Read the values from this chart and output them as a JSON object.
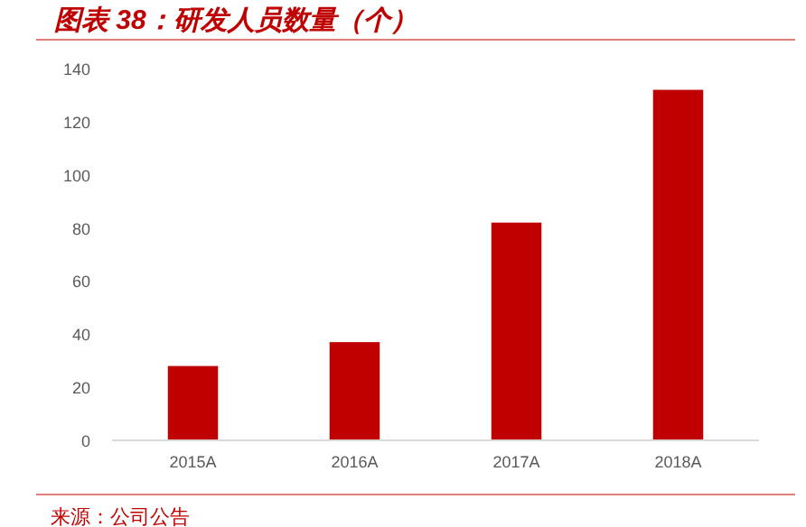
{
  "chart_data": {
    "type": "bar",
    "title": "图表 38：研发人员数量（个）",
    "categories": [
      "2015A",
      "2016A",
      "2017A",
      "2018A"
    ],
    "values": [
      28,
      37,
      82,
      132
    ],
    "color": "#c00000",
    "ylim": [
      0,
      140
    ],
    "yticks": [
      0,
      20,
      40,
      60,
      80,
      100,
      120,
      140
    ],
    "annotations": [
      "来源：公司公告"
    ]
  }
}
